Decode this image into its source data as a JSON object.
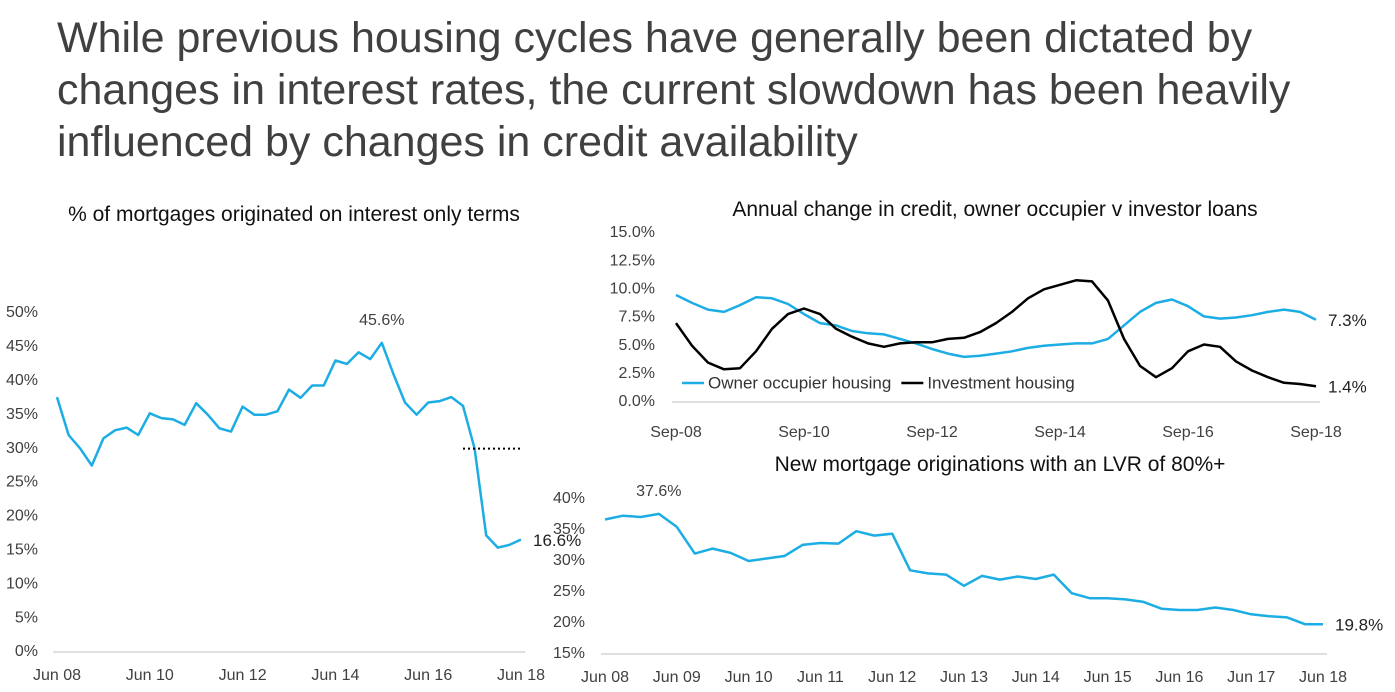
{
  "title": "While previous housing cycles have generally been dictated by changes in interest rates, the current slowdown has been heavily influenced by changes in credit availability",
  "chart_data": [
    {
      "type": "line",
      "title": "% of mortgages originated on interest only terms",
      "categories": [
        "Jun 08",
        null,
        null,
        null,
        null,
        null,
        null,
        null,
        "Jun 10",
        null,
        null,
        null,
        null,
        null,
        null,
        null,
        "Jun 12",
        null,
        null,
        null,
        null,
        null,
        null,
        null,
        "Jun 14",
        null,
        null,
        null,
        null,
        null,
        null,
        null,
        "Jun 16",
        null,
        null,
        null,
        null,
        null,
        null,
        null,
        "Jun 18"
      ],
      "values": [
        37.6,
        32,
        30,
        27.5,
        31.5,
        32.7,
        33.1,
        32,
        35.2,
        34.5,
        34.3,
        33.5,
        36.7,
        35,
        33,
        32.5,
        36.2,
        35,
        35,
        35.5,
        38.7,
        37.5,
        39.3,
        39.3,
        43,
        42.5,
        44.2,
        43.2,
        45.6,
        41,
        36.8,
        35,
        36.8,
        37,
        37.6,
        36.3,
        30,
        17.2,
        15.4,
        15.8,
        16.6
      ],
      "value_labels": [
        null,
        null,
        null,
        null,
        null,
        null,
        null,
        null,
        null,
        null,
        null,
        null,
        null,
        null,
        null,
        null,
        null,
        null,
        null,
        null,
        null,
        null,
        null,
        null,
        null,
        null,
        null,
        null,
        "45.6%",
        null,
        null,
        null,
        null,
        null,
        null,
        null,
        null,
        null,
        null,
        null,
        "16.6%"
      ],
      "color": "#1cade4",
      "reference_line": 30,
      "ylim": [
        0,
        50
      ],
      "yticks": [
        {
          "value": 0,
          "label": "0%"
        },
        {
          "value": 5,
          "label": "5%"
        },
        {
          "value": 10,
          "label": "10%"
        },
        {
          "value": 15,
          "label": "15%"
        },
        {
          "value": 20,
          "label": "20%"
        },
        {
          "value": 25,
          "label": "25%"
        },
        {
          "value": 30,
          "label": "30%"
        },
        {
          "value": 35,
          "label": "35%"
        },
        {
          "value": 40,
          "label": "40%"
        },
        {
          "value": 45,
          "label": "45%"
        },
        {
          "value": 50,
          "label": "50%"
        }
      ]
    },
    {
      "type": "line",
      "title": "Annual change in credit, owner occupier v investor loans",
      "categories": [
        "Sep-08",
        null,
        null,
        null,
        null,
        null,
        null,
        null,
        "Sep-10",
        null,
        null,
        null,
        null,
        null,
        null,
        null,
        "Sep-12",
        null,
        null,
        null,
        null,
        null,
        null,
        null,
        "Sep-14",
        null,
        null,
        null,
        null,
        null,
        null,
        null,
        "Sep-16",
        null,
        null,
        null,
        null,
        null,
        null,
        null,
        "Sep-18"
      ],
      "series": [
        {
          "name": "Owner occupier housing",
          "color": "#1cade4",
          "values": [
            9.5,
            8.8,
            8.2,
            8.0,
            8.6,
            9.3,
            9.2,
            8.7,
            7.8,
            7.0,
            6.8,
            6.3,
            6.1,
            6.0,
            5.6,
            5.2,
            4.7,
            4.3,
            4.0,
            4.1,
            4.3,
            4.5,
            4.8,
            5.0,
            5.1,
            5.2,
            5.2,
            5.6,
            6.8,
            8.0,
            8.8,
            9.1,
            8.5,
            7.6,
            7.4,
            7.5,
            7.7,
            8.0,
            8.2,
            8.0,
            7.3
          ],
          "value_labels": [
            null,
            null,
            null,
            null,
            null,
            null,
            null,
            null,
            null,
            null,
            null,
            null,
            null,
            null,
            null,
            null,
            null,
            null,
            null,
            null,
            null,
            null,
            null,
            null,
            null,
            null,
            null,
            null,
            null,
            null,
            null,
            null,
            null,
            null,
            null,
            null,
            null,
            null,
            null,
            null,
            "7.3%"
          ]
        },
        {
          "name": "Investment housing",
          "color": "#000000",
          "values": [
            7.0,
            5.0,
            3.5,
            2.9,
            3.0,
            4.5,
            6.5,
            7.8,
            8.3,
            7.8,
            6.5,
            5.8,
            5.2,
            4.9,
            5.2,
            5.3,
            5.3,
            5.6,
            5.7,
            6.2,
            7.0,
            8.0,
            9.2,
            10.0,
            10.4,
            10.8,
            10.7,
            9.0,
            5.6,
            3.2,
            2.2,
            3.0,
            4.5,
            5.1,
            4.9,
            3.6,
            2.8,
            2.2,
            1.7,
            1.6,
            1.4
          ],
          "value_labels": [
            null,
            null,
            null,
            null,
            null,
            null,
            null,
            null,
            null,
            null,
            null,
            null,
            null,
            null,
            null,
            null,
            null,
            null,
            null,
            null,
            null,
            null,
            null,
            null,
            null,
            null,
            null,
            null,
            null,
            null,
            null,
            null,
            null,
            null,
            null,
            null,
            null,
            null,
            null,
            null,
            "1.4%"
          ]
        }
      ],
      "legend": "lower left",
      "ylim": [
        0,
        15
      ],
      "yticks": [
        {
          "value": 0,
          "label": "0.0%"
        },
        {
          "value": 2.5,
          "label": "2.5%"
        },
        {
          "value": 5,
          "label": "5.0%"
        },
        {
          "value": 7.5,
          "label": "7.5%"
        },
        {
          "value": 10,
          "label": "10.0%"
        },
        {
          "value": 12.5,
          "label": "12.5%"
        },
        {
          "value": 15,
          "label": "15.0%"
        }
      ]
    },
    {
      "type": "line",
      "title": "New mortgage originations with an LVR of 80%+",
      "categories": [
        "Jun 08",
        null,
        null,
        null,
        "Jun 09",
        null,
        null,
        null,
        "Jun 10",
        null,
        null,
        null,
        "Jun 11",
        null,
        null,
        null,
        "Jun 12",
        null,
        null,
        null,
        "Jun 13",
        null,
        null,
        null,
        "Jun 14",
        null,
        null,
        null,
        "Jun 15",
        null,
        null,
        null,
        "Jun 16",
        null,
        null,
        null,
        "Jun 17",
        null,
        null,
        null,
        "Jun 18"
      ],
      "values": [
        36.7,
        37.3,
        37.1,
        37.6,
        35.5,
        31.2,
        32,
        31.3,
        30,
        30.4,
        30.8,
        32.6,
        32.9,
        32.8,
        34.8,
        34.1,
        34.4,
        28.5,
        28,
        27.8,
        26,
        27.6,
        27,
        27.5,
        27.1,
        27.8,
        24.8,
        24,
        24,
        23.8,
        23.4,
        22.3,
        22.1,
        22.1,
        22.5,
        22.1,
        21.4,
        21.1,
        20.9,
        19.8,
        19.8
      ],
      "value_labels": [
        null,
        null,
        null,
        "37.6%",
        null,
        null,
        null,
        null,
        null,
        null,
        null,
        null,
        null,
        null,
        null,
        null,
        null,
        null,
        null,
        null,
        null,
        null,
        null,
        null,
        null,
        null,
        null,
        null,
        null,
        null,
        null,
        null,
        null,
        null,
        null,
        null,
        null,
        null,
        null,
        null,
        "19.8%"
      ],
      "color": "#1cade4",
      "ylim": [
        15,
        40
      ],
      "yticks": [
        {
          "value": 15,
          "label": "15%"
        },
        {
          "value": 20,
          "label": "20%"
        },
        {
          "value": 25,
          "label": "25%"
        },
        {
          "value": 30,
          "label": "30%"
        },
        {
          "value": 35,
          "label": "35%"
        },
        {
          "value": 40,
          "label": "40%"
        }
      ]
    }
  ]
}
